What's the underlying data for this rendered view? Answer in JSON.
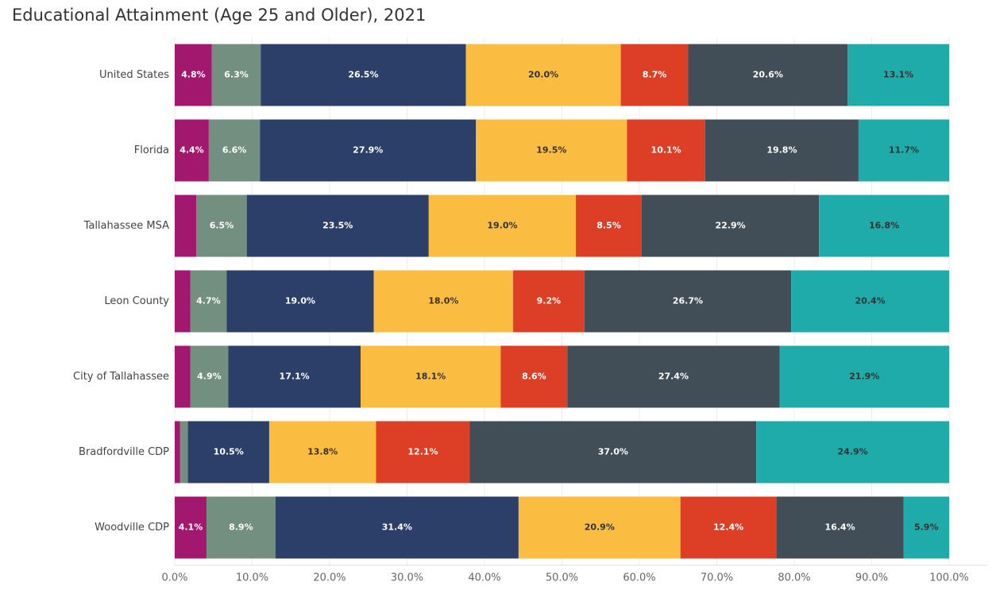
{
  "chart_data": {
    "type": "bar",
    "orientation": "horizontal",
    "stacked": true,
    "title": "Educational Attainment (Age 25 and Older), 2021",
    "categories": [
      "United States",
      "Florida",
      "Tallahassee MSA",
      "Leon County",
      "City of Tallahassee",
      "Bradfordville CDP",
      "Woodville CDP"
    ],
    "series": [
      {
        "color": "#a3186f",
        "values": [
          4.8,
          4.4,
          2.8,
          2.0,
          2.0,
          0.7,
          4.1
        ],
        "value_labels": [
          "4.8%",
          "4.4%",
          null,
          null,
          null,
          null,
          "4.1%"
        ]
      },
      {
        "color": "#728f7f",
        "values": [
          6.3,
          6.6,
          6.5,
          4.7,
          4.9,
          1.0,
          8.9
        ],
        "value_labels": [
          "6.3%",
          "6.6%",
          "6.5%",
          "4.7%",
          "4.9%",
          null,
          "8.9%"
        ]
      },
      {
        "color": "#2b3f68",
        "values": [
          26.5,
          27.9,
          23.5,
          19.0,
          17.1,
          10.5,
          31.4
        ],
        "value_labels": [
          "26.5%",
          "27.9%",
          "23.5%",
          "19.0%",
          "17.1%",
          "10.5%",
          "31.4%"
        ]
      },
      {
        "color": "#fbbc42",
        "values": [
          20.0,
          19.5,
          19.0,
          18.0,
          18.1,
          13.8,
          20.9
        ],
        "value_labels": [
          "20.0%",
          "19.5%",
          "19.0%",
          "18.0%",
          "18.1%",
          "13.8%",
          "20.9%"
        ]
      },
      {
        "color": "#dc3f26",
        "values": [
          8.7,
          10.1,
          8.5,
          9.2,
          8.6,
          12.1,
          12.4
        ],
        "value_labels": [
          "8.7%",
          "10.1%",
          "8.5%",
          "9.2%",
          "8.6%",
          "12.1%",
          "12.4%"
        ]
      },
      {
        "color": "#414e57",
        "values": [
          20.6,
          19.8,
          22.9,
          26.7,
          27.4,
          37.0,
          16.4
        ],
        "value_labels": [
          "20.6%",
          "19.8%",
          "22.9%",
          "26.7%",
          "27.4%",
          "37.0%",
          "16.4%"
        ]
      },
      {
        "color": "#20abab",
        "values": [
          13.1,
          11.7,
          16.8,
          20.4,
          21.9,
          24.9,
          5.9
        ],
        "value_labels": [
          "13.1%",
          "11.7%",
          "16.8%",
          "20.4%",
          "21.9%",
          "24.9%",
          "5.9%"
        ]
      }
    ],
    "xlim": [
      0,
      100
    ],
    "xticks": [
      {
        "value": 0,
        "label": "0.0%"
      },
      {
        "value": 10,
        "label": "10.0%"
      },
      {
        "value": 20,
        "label": "20.0%"
      },
      {
        "value": 30,
        "label": "30.0%"
      },
      {
        "value": 40,
        "label": "40.0%"
      },
      {
        "value": 50,
        "label": "50.0%"
      },
      {
        "value": 60,
        "label": "60.0%"
      },
      {
        "value": 70,
        "label": "70.0%"
      },
      {
        "value": 80,
        "label": "80.0%"
      },
      {
        "value": 90,
        "label": "90.0%"
      },
      {
        "value": 100,
        "label": "100.0%"
      }
    ],
    "grid": true
  }
}
